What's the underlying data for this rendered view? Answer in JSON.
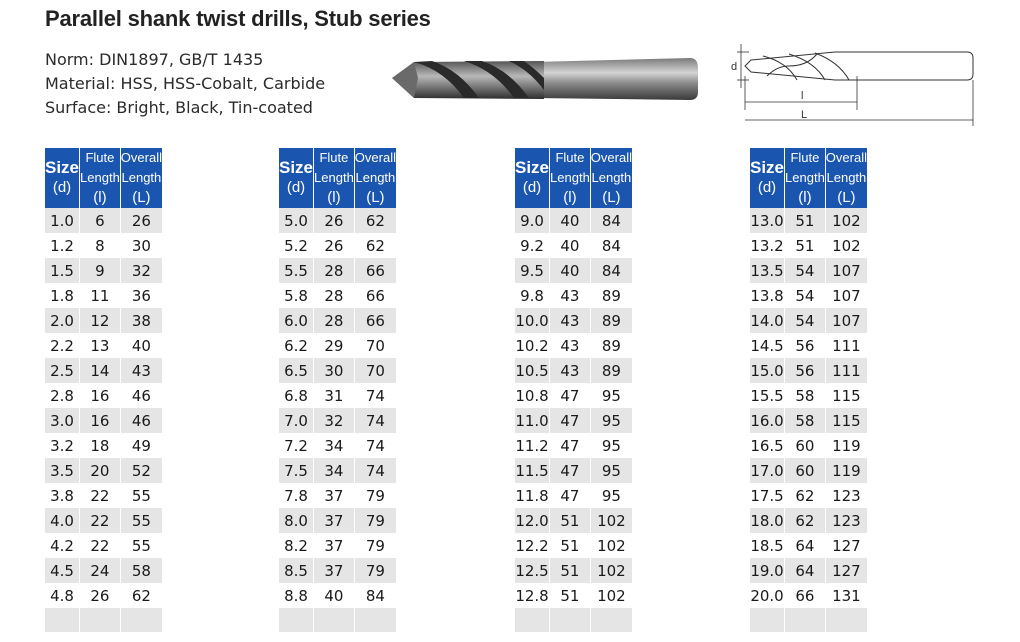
{
  "title": "Parallel shank twist drills, Stub series",
  "specs": {
    "norm": "Norm: DIN1897,  GB/T 1435",
    "material": "Material: HSS, HSS-Cobalt, Carbide",
    "surface": "Surface: Bright, Black, Tin-coated"
  },
  "diagram": {
    "d": "d",
    "l": "l",
    "L": "L"
  },
  "header": {
    "size": "Size",
    "size_sub": "(d)",
    "flute": "Flute Length",
    "flute_sub": "(l)",
    "overall": "Overall Length",
    "overall_sub": "(L)"
  },
  "tables": [
    {
      "rows": [
        [
          "1.0",
          "6",
          "26"
        ],
        [
          "1.2",
          "8",
          "30"
        ],
        [
          "1.5",
          "9",
          "32"
        ],
        [
          "1.8",
          "11",
          "36"
        ],
        [
          "2.0",
          "12",
          "38"
        ],
        [
          "2.2",
          "13",
          "40"
        ],
        [
          "2.5",
          "14",
          "43"
        ],
        [
          "2.8",
          "16",
          "46"
        ],
        [
          "3.0",
          "16",
          "46"
        ],
        [
          "3.2",
          "18",
          "49"
        ],
        [
          "3.5",
          "20",
          "52"
        ],
        [
          "3.8",
          "22",
          "55"
        ],
        [
          "4.0",
          "22",
          "55"
        ],
        [
          "4.2",
          "22",
          "55"
        ],
        [
          "4.5",
          "24",
          "58"
        ],
        [
          "4.8",
          "26",
          "62"
        ]
      ]
    },
    {
      "rows": [
        [
          "5.0",
          "26",
          "62"
        ],
        [
          "5.2",
          "26",
          "62"
        ],
        [
          "5.5",
          "28",
          "66"
        ],
        [
          "5.8",
          "28",
          "66"
        ],
        [
          "6.0",
          "28",
          "66"
        ],
        [
          "6.2",
          "29",
          "70"
        ],
        [
          "6.5",
          "30",
          "70"
        ],
        [
          "6.8",
          "31",
          "74"
        ],
        [
          "7.0",
          "32",
          "74"
        ],
        [
          "7.2",
          "34",
          "74"
        ],
        [
          "7.5",
          "34",
          "74"
        ],
        [
          "7.8",
          "37",
          "79"
        ],
        [
          "8.0",
          "37",
          "79"
        ],
        [
          "8.2",
          "37",
          "79"
        ],
        [
          "8.5",
          "37",
          "79"
        ],
        [
          "8.8",
          "40",
          "84"
        ]
      ]
    },
    {
      "rows": [
        [
          "9.0",
          "40",
          "84"
        ],
        [
          "9.2",
          "40",
          "84"
        ],
        [
          "9.5",
          "40",
          "84"
        ],
        [
          "9.8",
          "43",
          "89"
        ],
        [
          "10.0",
          "43",
          "89"
        ],
        [
          "10.2",
          "43",
          "89"
        ],
        [
          "10.5",
          "43",
          "89"
        ],
        [
          "10.8",
          "47",
          "95"
        ],
        [
          "11.0",
          "47",
          "95"
        ],
        [
          "11.2",
          "47",
          "95"
        ],
        [
          "11.5",
          "47",
          "95"
        ],
        [
          "11.8",
          "47",
          "95"
        ],
        [
          "12.0",
          "51",
          "102"
        ],
        [
          "12.2",
          "51",
          "102"
        ],
        [
          "12.5",
          "51",
          "102"
        ],
        [
          "12.8",
          "51",
          "102"
        ]
      ]
    },
    {
      "rows": [
        [
          "13.0",
          "51",
          "102"
        ],
        [
          "13.2",
          "51",
          "102"
        ],
        [
          "13.5",
          "54",
          "107"
        ],
        [
          "13.8",
          "54",
          "107"
        ],
        [
          "14.0",
          "54",
          "107"
        ],
        [
          "14.5",
          "56",
          "111"
        ],
        [
          "15.0",
          "56",
          "111"
        ],
        [
          "15.5",
          "58",
          "115"
        ],
        [
          "16.0",
          "58",
          "115"
        ],
        [
          "16.5",
          "60",
          "119"
        ],
        [
          "17.0",
          "60",
          "119"
        ],
        [
          "17.5",
          "62",
          "123"
        ],
        [
          "18.0",
          "62",
          "123"
        ],
        [
          "18.5",
          "64",
          "127"
        ],
        [
          "19.0",
          "64",
          "127"
        ],
        [
          "20.0",
          "66",
          "131"
        ]
      ]
    }
  ]
}
